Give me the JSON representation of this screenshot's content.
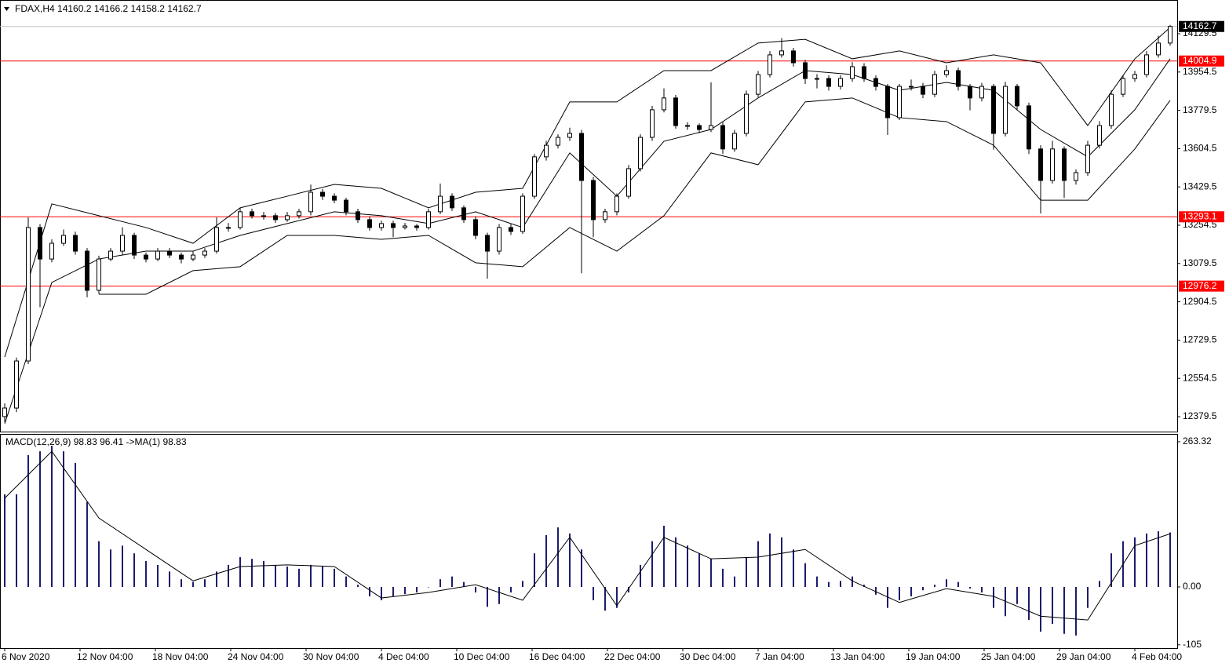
{
  "chart_data": [
    {
      "type": "candlestick",
      "title": "FDAX,H4",
      "quote": [
        14160.2,
        14166.2,
        14158.2,
        14162.7
      ],
      "x_labels": [
        "6 Nov 2020",
        "12 Nov 04:00",
        "18 Nov 04:00",
        "24 Nov 04:00",
        "30 Nov 04:00",
        "4 Dec 04:00",
        "10 Dec 04:00",
        "16 Dec 04:00",
        "22 Dec 04:00",
        "30 Dec 04:00",
        "7 Jan 04:00",
        "13 Jan 04:00",
        "19 Jan 04:00",
        "25 Jan 04:00",
        "29 Jan 04:00",
        "4 Feb 04:00"
      ],
      "candles": [
        [
          12380,
          12440,
          12355,
          12419
        ],
        [
          12419,
          12650,
          12400,
          12634
        ],
        [
          12634,
          13290,
          12620,
          13244
        ],
        [
          13244,
          13260,
          12880,
          13100
        ],
        [
          13100,
          13190,
          13085,
          13172
        ],
        [
          13172,
          13235,
          13160,
          13208
        ],
        [
          13208,
          13225,
          13120,
          13136
        ],
        [
          13136,
          13150,
          12925,
          12957
        ],
        [
          12957,
          13115,
          12940,
          13100
        ],
        [
          13100,
          13150,
          13090,
          13136
        ],
        [
          13136,
          13245,
          13120,
          13208
        ],
        [
          13208,
          13220,
          13100,
          13118
        ],
        [
          13118,
          13130,
          13085,
          13100
        ],
        [
          13100,
          13150,
          13090,
          13136
        ],
        [
          13136,
          13150,
          13105,
          13118
        ],
        [
          13118,
          13130,
          13080,
          13100
        ],
        [
          13100,
          13135,
          13090,
          13118
        ],
        [
          13118,
          13150,
          13105,
          13136
        ],
        [
          13136,
          13290,
          13125,
          13244
        ],
        [
          13244,
          13265,
          13225,
          13244
        ],
        [
          13244,
          13335,
          13235,
          13316
        ],
        [
          13316,
          13330,
          13285,
          13298
        ],
        [
          13298,
          13315,
          13280,
          13298
        ],
        [
          13298,
          13310,
          13265,
          13280
        ],
        [
          13280,
          13315,
          13270,
          13298
        ],
        [
          13298,
          13330,
          13285,
          13316
        ],
        [
          13316,
          13440,
          13300,
          13405
        ],
        [
          13405,
          13420,
          13370,
          13387
        ],
        [
          13387,
          13400,
          13355,
          13369
        ],
        [
          13369,
          13380,
          13300,
          13316
        ],
        [
          13316,
          13330,
          13265,
          13280
        ],
        [
          13280,
          13295,
          13230,
          13244
        ],
        [
          13244,
          13275,
          13230,
          13262
        ],
        [
          13262,
          13275,
          13200,
          13244
        ],
        [
          13244,
          13265,
          13235,
          13251
        ],
        [
          13251,
          13260,
          13230,
          13244
        ],
        [
          13244,
          13330,
          13235,
          13316
        ],
        [
          13316,
          13445,
          13305,
          13387
        ],
        [
          13387,
          13400,
          13320,
          13334
        ],
        [
          13334,
          13345,
          13265,
          13280
        ],
        [
          13280,
          13295,
          13190,
          13208
        ],
        [
          13208,
          13220,
          13010,
          13136
        ],
        [
          13136,
          13260,
          13120,
          13244
        ],
        [
          13244,
          13260,
          13210,
          13226
        ],
        [
          13226,
          13400,
          13215,
          13387
        ],
        [
          13387,
          13580,
          13375,
          13567
        ],
        [
          13567,
          13640,
          13550,
          13620
        ],
        [
          13620,
          13670,
          13605,
          13656
        ],
        [
          13656,
          13700,
          13640,
          13674
        ],
        [
          13674,
          13690,
          13035,
          13459
        ],
        [
          13459,
          13475,
          13200,
          13280
        ],
        [
          13280,
          13330,
          13265,
          13316
        ],
        [
          13316,
          13400,
          13300,
          13387
        ],
        [
          13387,
          13530,
          13375,
          13513
        ],
        [
          13513,
          13670,
          13500,
          13656
        ],
        [
          13656,
          13800,
          13640,
          13782
        ],
        [
          13782,
          13880,
          13770,
          13836
        ],
        [
          13836,
          13850,
          13695,
          13710
        ],
        [
          13710,
          13725,
          13690,
          13710
        ],
        [
          13710,
          13720,
          13675,
          13692
        ],
        [
          13692,
          13907,
          13680,
          13710
        ],
        [
          13710,
          13725,
          13580,
          13603
        ],
        [
          13603,
          13690,
          13590,
          13674
        ],
        [
          13674,
          13870,
          13660,
          13853
        ],
        [
          13853,
          13960,
          13840,
          13943
        ],
        [
          13943,
          14050,
          13930,
          14033
        ],
        [
          14033,
          14110,
          14020,
          14051
        ],
        [
          14051,
          14065,
          13980,
          13997
        ],
        [
          13997,
          14010,
          13900,
          13925
        ],
        [
          13925,
          13945,
          13880,
          13925
        ],
        [
          13925,
          13940,
          13870,
          13889
        ],
        [
          13889,
          13940,
          13875,
          13925
        ],
        [
          13925,
          14000,
          13910,
          13979
        ],
        [
          13979,
          13995,
          13910,
          13925
        ],
        [
          13925,
          13940,
          13870,
          13889
        ],
        [
          13889,
          13900,
          13667,
          13746
        ],
        [
          13746,
          13900,
          13735,
          13889
        ],
        [
          13889,
          13920,
          13870,
          13889
        ],
        [
          13889,
          13905,
          13835,
          13853
        ],
        [
          13853,
          13960,
          13840,
          13943
        ],
        [
          13943,
          13985,
          13930,
          13961
        ],
        [
          13961,
          13975,
          13870,
          13889
        ],
        [
          13889,
          13900,
          13780,
          13836
        ],
        [
          13836,
          13905,
          13820,
          13889
        ],
        [
          13889,
          13900,
          13600,
          13674
        ],
        [
          13674,
          13910,
          13660,
          13889
        ],
        [
          13889,
          13900,
          13780,
          13800
        ],
        [
          13800,
          13815,
          13580,
          13603
        ],
        [
          13603,
          13620,
          13308,
          13459
        ],
        [
          13459,
          13640,
          13445,
          13603
        ],
        [
          13603,
          13615,
          13380,
          13459
        ],
        [
          13459,
          13510,
          13440,
          13495
        ],
        [
          13495,
          13640,
          13480,
          13620
        ],
        [
          13620,
          13730,
          13605,
          13710
        ],
        [
          13710,
          13870,
          13695,
          13853
        ],
        [
          13853,
          13940,
          13840,
          13925
        ],
        [
          13925,
          13960,
          13910,
          13943
        ],
        [
          13943,
          14050,
          13930,
          14033
        ],
        [
          14033,
          14120,
          14020,
          14087
        ],
        [
          14087,
          14170,
          14075,
          14162.7
        ]
      ],
      "up_color": "#ffffff",
      "down_color": "#000000",
      "bands": {
        "x": [
          0,
          4,
          8,
          12,
          16,
          20,
          24,
          28,
          32,
          36,
          40,
          44,
          48,
          52,
          56,
          60,
          64,
          68,
          72,
          76,
          80,
          84,
          88,
          92,
          96,
          99
        ],
        "upper": [
          12652,
          13352,
          13298,
          13244,
          13172,
          13334,
          13387,
          13441,
          13423,
          13334,
          13405,
          13423,
          13818,
          13818,
          13961,
          13961,
          14087,
          14104,
          14015,
          14051,
          13997,
          14033,
          13997,
          13710,
          14015,
          14158
        ],
        "middle": [
          12348,
          12993,
          13100,
          13136,
          13136,
          13208,
          13262,
          13316,
          13298,
          13262,
          13316,
          13244,
          13585,
          13387,
          13638,
          13692,
          13836,
          13961,
          13943,
          13871,
          13907,
          13871,
          13692,
          13567,
          13782,
          14015
        ],
        "lower": [
          null,
          null,
          12939,
          12939,
          13047,
          13065,
          13208,
          13208,
          13190,
          13208,
          13083,
          13065,
          13244,
          13136,
          13298,
          13585,
          13531,
          13818,
          13836,
          13746,
          13728,
          13620,
          13369,
          13369,
          13603,
          13825
        ],
        "color": "#000000"
      },
      "levels": [
        {
          "value": 14004.9,
          "color": "#ff0000"
        },
        {
          "value": 13293.1,
          "color": "#ff0000"
        },
        {
          "value": 12976.2,
          "color": "#ff0000"
        }
      ],
      "price_line_color": "#c0c0c0",
      "ylim": [
        12311.4,
        14283.7
      ],
      "yticks": [
        14129.5,
        13954.5,
        13779.5,
        13604.5,
        13429.5,
        13254.5,
        13079.5,
        12904.5,
        12729.5,
        12554.5,
        12379.5
      ]
    },
    {
      "type": "macd",
      "title": "MACD(12,26,9)",
      "ma_label": "->MA(1)",
      "histogram": [
        168,
        168,
        239,
        246,
        256,
        246,
        225,
        154,
        83,
        68,
        75,
        61,
        47,
        40,
        28,
        14,
        9,
        14,
        28,
        40,
        54,
        51,
        47,
        40,
        37,
        33,
        40,
        37,
        33,
        19,
        4,
        -17,
        -24,
        -17,
        -13,
        -10,
        0,
        14,
        19,
        9,
        -10,
        -36,
        -31,
        -10,
        11,
        61,
        94,
        108,
        97,
        68,
        -24,
        -43,
        -38,
        -10,
        40,
        83,
        111,
        90,
        75,
        61,
        51,
        33,
        19,
        54,
        83,
        97,
        90,
        68,
        43,
        19,
        9,
        11,
        19,
        4,
        -14,
        -38,
        -24,
        -17,
        -6,
        4,
        14,
        9,
        -3,
        -10,
        -38,
        -53,
        -31,
        -60,
        -81,
        -67,
        -85,
        -88,
        -38,
        11,
        61,
        83,
        90,
        97,
        101,
        98.83
      ],
      "histogram_color": "#1c1c6c",
      "signal": {
        "x": [
          0,
          4,
          8,
          12,
          16,
          20,
          24,
          28,
          32,
          36,
          40,
          44,
          48,
          52,
          56,
          60,
          64,
          68,
          72,
          76,
          80,
          84,
          88,
          92,
          96,
          99
        ],
        "values": [
          161,
          246,
          125,
          68,
          11,
          37,
          40,
          37,
          -20,
          -10,
          4,
          -24,
          90,
          -34,
          90,
          51,
          54,
          68,
          11,
          -28,
          -3,
          -17,
          -53,
          -60,
          75,
          96.41
        ],
        "color": "#000000"
      },
      "ylim": [
        -111,
        277.5
      ],
      "yticks": [
        263.32,
        {
          "value": 0,
          "label": "0.00"
        },
        -105
      ]
    }
  ]
}
